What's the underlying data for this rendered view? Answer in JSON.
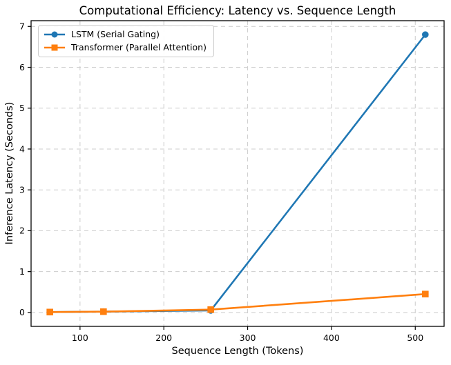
{
  "chart_data": {
    "type": "line",
    "title": "Computational Efficiency: Latency vs. Sequence Length",
    "xlabel": "Sequence Length (Tokens)",
    "ylabel": "Inference Latency (Seconds)",
    "x": [
      64,
      128,
      256,
      512
    ],
    "series": [
      {
        "name": "LSTM (Serial Gating)",
        "marker": "circle",
        "color": "#1f77b4",
        "values": [
          0.01,
          0.02,
          0.05,
          6.8
        ]
      },
      {
        "name": "Transformer (Parallel Attention)",
        "marker": "square",
        "color": "#ff7f0e",
        "values": [
          0.01,
          0.02,
          0.07,
          0.45
        ]
      }
    ],
    "xlim": [
      41.6,
      534.4
    ],
    "ylim": [
      -0.34,
      7.14
    ],
    "xticks": [
      100,
      200,
      300,
      400,
      500
    ],
    "yticks": [
      0,
      1,
      2,
      3,
      4,
      5,
      6,
      7
    ],
    "grid": true,
    "grid_style": "dashed",
    "legend_position": "upper-left",
    "colors": {
      "grid": "#cccccc",
      "spine": "#000000",
      "text": "#000000",
      "legend_border": "#cccccc",
      "background": "#ffffff"
    }
  }
}
